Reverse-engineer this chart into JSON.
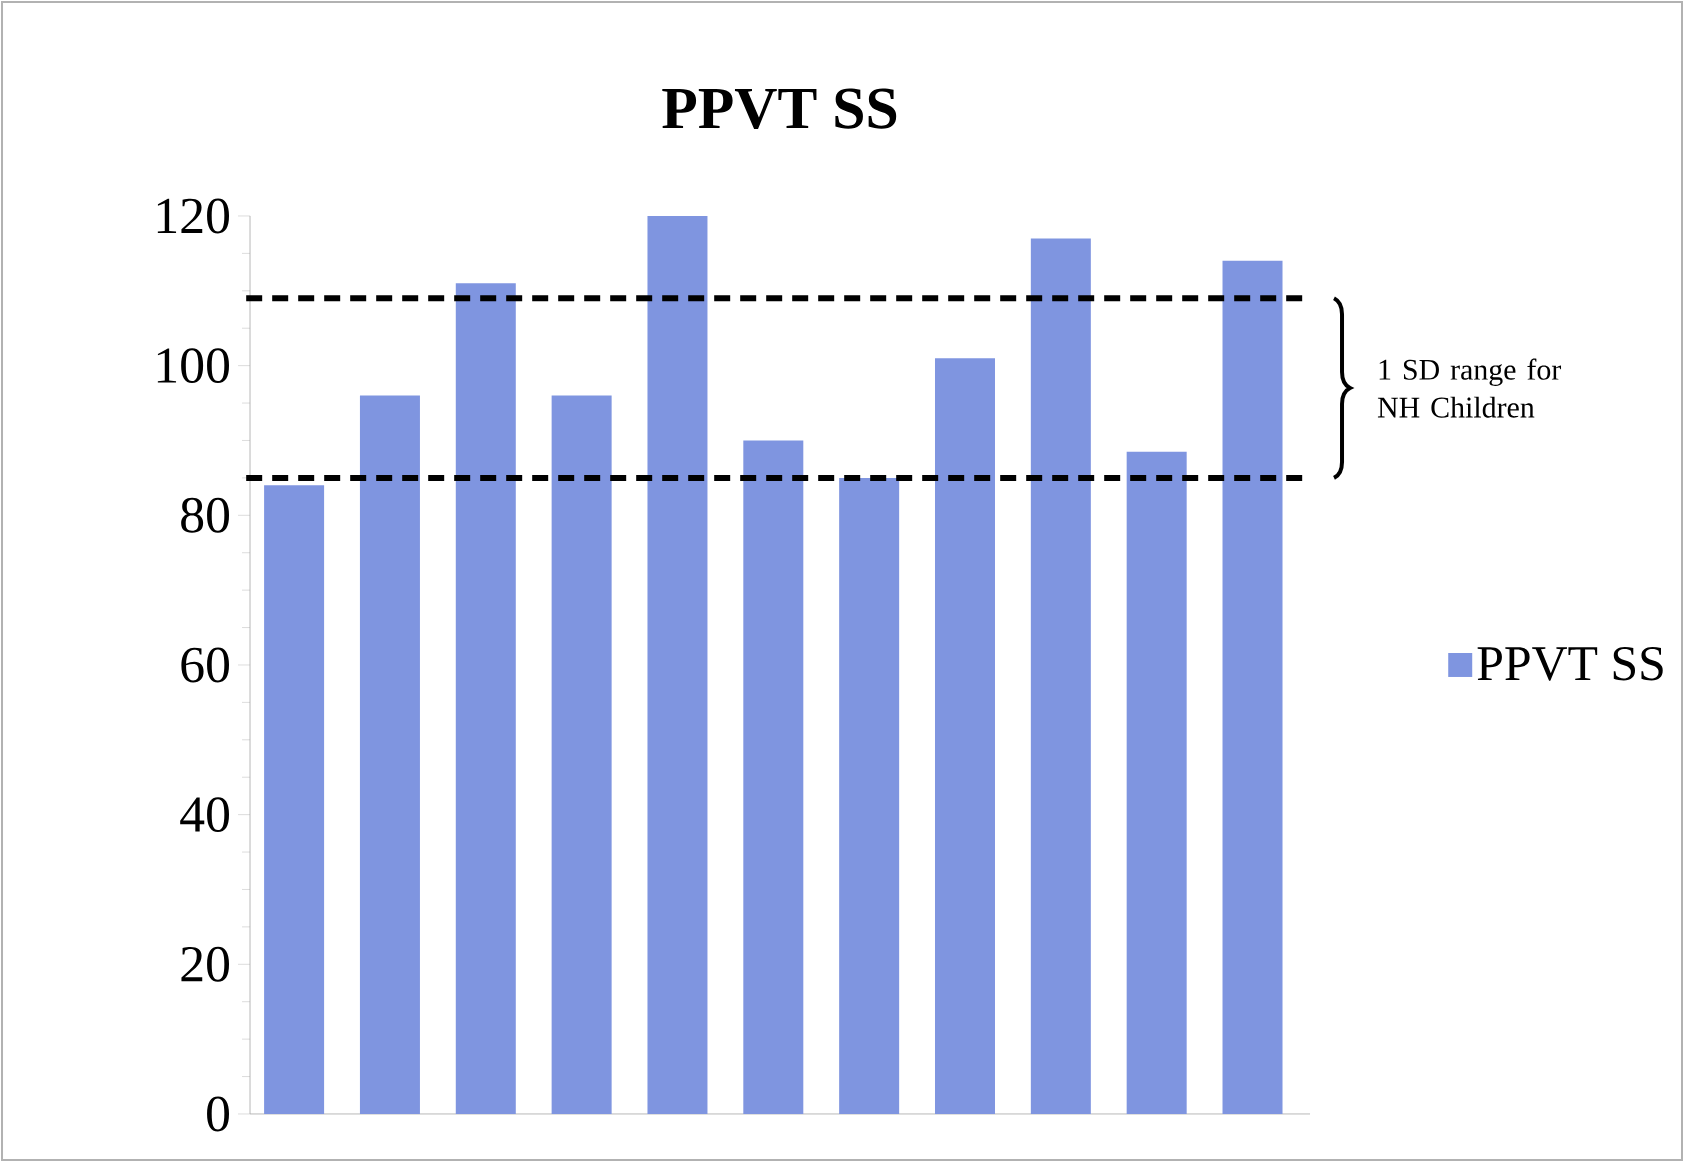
{
  "chart_data": {
    "type": "bar",
    "title": "PPVT SS",
    "categories": [
      null,
      null,
      null,
      null,
      null,
      null,
      null,
      null,
      null,
      null,
      null
    ],
    "series": [
      {
        "name": "PPVT SS",
        "color": "#7f95e0",
        "values": [
          84,
          96,
          111,
          96,
          120,
          90,
          85,
          101,
          117,
          88.5,
          114
        ]
      }
    ],
    "ylim": [
      0,
      120
    ],
    "yticks": [
      0,
      20,
      40,
      60,
      80,
      100,
      120
    ],
    "ref_lines": [
      {
        "axis": "y",
        "value": 109,
        "color": "#000000",
        "line_style": "dashed"
      },
      {
        "axis": "y",
        "value": 85,
        "color": "#000000",
        "line_style": "dashed"
      }
    ],
    "annotations": [
      "1 SD range for NH Children"
    ],
    "legend": "right",
    "grid": false
  }
}
